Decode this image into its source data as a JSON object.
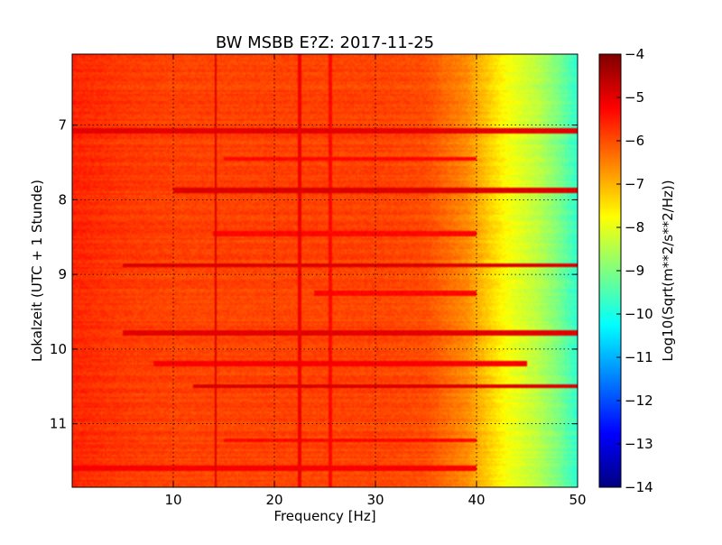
{
  "chart_data": {
    "type": "heatmap",
    "title": "BW MSBB E?Z: 2017-11-25",
    "xlabel": "Frequency [Hz]",
    "ylabel": "Lokalzeit (UTC + 1 Stunde)",
    "xlim": [
      0,
      50
    ],
    "ylim": [
      6.05,
      11.85
    ],
    "y_inverted": true,
    "x_ticks": [
      10,
      20,
      30,
      40,
      50
    ],
    "x_tick_labels": [
      "10",
      "20",
      "30",
      "40",
      "50"
    ],
    "y_ticks": [
      7,
      8,
      9,
      10,
      11
    ],
    "y_tick_labels": [
      "7",
      "8",
      "9",
      "10",
      "11"
    ],
    "grid": true,
    "colormap": "jet",
    "colorbar": {
      "label": "Log10(Sqrt(m**2/s**2/Hz))",
      "vmin": -14,
      "vmax": -4,
      "ticks": [
        -4,
        -5,
        -6,
        -7,
        -8,
        -9,
        -10,
        -11,
        -12,
        -13,
        -14
      ],
      "tick_labels": [
        "−4",
        "−5",
        "−6",
        "−7",
        "−8",
        "−9",
        "−10",
        "−11",
        "−12",
        "−13",
        "−14"
      ]
    },
    "frequency_profile": {
      "frequency_hz": [
        0,
        5,
        10,
        15,
        20,
        25,
        30,
        35,
        37,
        39,
        40,
        41,
        42,
        43,
        44,
        45,
        46,
        47,
        48,
        49,
        50
      ],
      "log10_amplitude": [
        -5.6,
        -5.8,
        -5.9,
        -5.9,
        -5.9,
        -5.9,
        -5.9,
        -6.0,
        -6.3,
        -6.6,
        -6.9,
        -7.2,
        -7.5,
        -7.8,
        -8.0,
        -8.2,
        -8.4,
        -8.7,
        -9.0,
        -9.4,
        -9.8
      ]
    },
    "bands": [
      {
        "time": 7.08,
        "freq_range": [
          0,
          50
        ],
        "log10_amplitude": -5.0
      },
      {
        "time": 7.45,
        "freq_range": [
          15,
          40
        ],
        "log10_amplitude": -5.3
      },
      {
        "time": 7.88,
        "freq_range": [
          10,
          50
        ],
        "log10_amplitude": -4.9
      },
      {
        "time": 8.45,
        "freq_range": [
          14,
          40
        ],
        "log10_amplitude": -5.3
      },
      {
        "time": 8.88,
        "freq_range": [
          5,
          50
        ],
        "log10_amplitude": -4.9
      },
      {
        "time": 9.25,
        "freq_range": [
          24,
          40
        ],
        "log10_amplitude": -5.3
      },
      {
        "time": 9.78,
        "freq_range": [
          5,
          50
        ],
        "log10_amplitude": -5.0
      },
      {
        "time": 10.2,
        "freq_range": [
          8,
          45
        ],
        "log10_amplitude": -5.2
      },
      {
        "time": 10.5,
        "freq_range": [
          12,
          50
        ],
        "log10_amplitude": -4.9
      },
      {
        "time": 11.22,
        "freq_range": [
          15,
          40
        ],
        "log10_amplitude": -5.3
      },
      {
        "time": 11.6,
        "freq_range": [
          0,
          40
        ],
        "log10_amplitude": -5.2
      }
    ],
    "lines": [
      {
        "freq": 14.2,
        "log10_amplitude": -4.9
      },
      {
        "freq": 22.5,
        "log10_amplitude": -5.1
      },
      {
        "freq": 25.5,
        "log10_amplitude": -5.3
      }
    ]
  }
}
